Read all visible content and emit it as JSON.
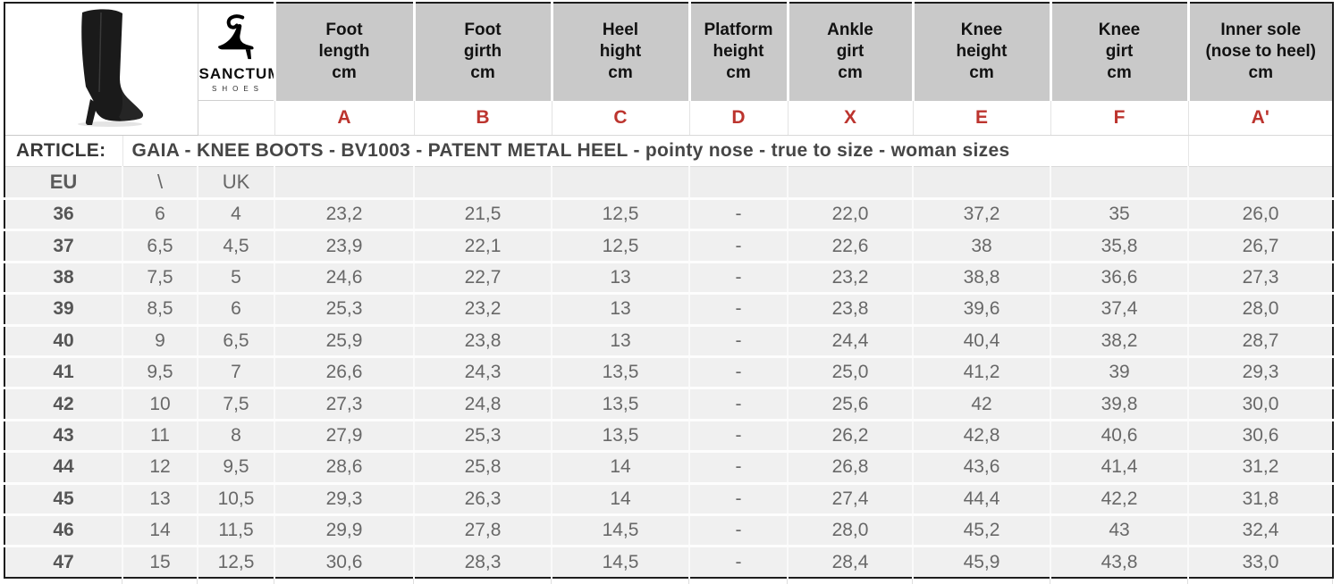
{
  "brand": {
    "name": "SANCTUM",
    "subtitle": "SHOES"
  },
  "article": {
    "label": "ARTICLE:",
    "value": "GAIA - KNEE BOOTS - BV1003 - PATENT METAL HEEL - pointy nose - true to size - woman sizes"
  },
  "columns": [
    {
      "id": "foot-length",
      "lines": [
        "Foot",
        "length",
        "cm"
      ],
      "letter": "A"
    },
    {
      "id": "foot-girth",
      "lines": [
        "Foot",
        "girth",
        "cm"
      ],
      "letter": "B"
    },
    {
      "id": "heel-hight",
      "lines": [
        "Heel",
        "hight",
        "cm"
      ],
      "letter": "C"
    },
    {
      "id": "platform-height",
      "lines": [
        "Platform",
        "height",
        "cm"
      ],
      "letter": "D"
    },
    {
      "id": "ankle-girt",
      "lines": [
        "Ankle",
        "girt",
        "cm"
      ],
      "letter": "X"
    },
    {
      "id": "knee-height",
      "lines": [
        "Knee",
        "height",
        "cm"
      ],
      "letter": "E"
    },
    {
      "id": "knee-girt",
      "lines": [
        "Knee",
        "girt",
        "cm"
      ],
      "letter": "F"
    },
    {
      "id": "inner-sole",
      "lines": [
        "Inner sole",
        "(nose to heel)",
        "cm"
      ],
      "letter": "A'"
    }
  ],
  "size_header": {
    "eu": "EU",
    "divider": "\\",
    "uk": "UK"
  },
  "rows": [
    {
      "eu": "36",
      "us": "6",
      "uk": "4",
      "values": [
        "23,2",
        "21,5",
        "12,5",
        "-",
        "22,0",
        "37,2",
        "35",
        "26,0"
      ]
    },
    {
      "eu": "37",
      "us": "6,5",
      "uk": "4,5",
      "values": [
        "23,9",
        "22,1",
        "12,5",
        "-",
        "22,6",
        "38",
        "35,8",
        "26,7"
      ]
    },
    {
      "eu": "38",
      "us": "7,5",
      "uk": "5",
      "values": [
        "24,6",
        "22,7",
        "13",
        "-",
        "23,2",
        "38,8",
        "36,6",
        "27,3"
      ]
    },
    {
      "eu": "39",
      "us": "8,5",
      "uk": "6",
      "values": [
        "25,3",
        "23,2",
        "13",
        "-",
        "23,8",
        "39,6",
        "37,4",
        "28,0"
      ]
    },
    {
      "eu": "40",
      "us": "9",
      "uk": "6,5",
      "values": [
        "25,9",
        "23,8",
        "13",
        "-",
        "24,4",
        "40,4",
        "38,2",
        "28,7"
      ]
    },
    {
      "eu": "41",
      "us": "9,5",
      "uk": "7",
      "values": [
        "26,6",
        "24,3",
        "13,5",
        "-",
        "25,0",
        "41,2",
        "39",
        "29,3"
      ]
    },
    {
      "eu": "42",
      "us": "10",
      "uk": "7,5",
      "values": [
        "27,3",
        "24,8",
        "13,5",
        "-",
        "25,6",
        "42",
        "39,8",
        "30,0"
      ]
    },
    {
      "eu": "43",
      "us": "11",
      "uk": "8",
      "values": [
        "27,9",
        "25,3",
        "13,5",
        "-",
        "26,2",
        "42,8",
        "40,6",
        "30,6"
      ]
    },
    {
      "eu": "44",
      "us": "12",
      "uk": "9,5",
      "values": [
        "28,6",
        "25,8",
        "14",
        "-",
        "26,8",
        "43,6",
        "41,4",
        "31,2"
      ]
    },
    {
      "eu": "45",
      "us": "13",
      "uk": "10,5",
      "values": [
        "29,3",
        "26,3",
        "14",
        "-",
        "27,4",
        "44,4",
        "42,2",
        "31,8"
      ]
    },
    {
      "eu": "46",
      "us": "14",
      "uk": "11,5",
      "values": [
        "29,9",
        "27,8",
        "14,5",
        "-",
        "28,0",
        "45,2",
        "43",
        "32,4"
      ]
    },
    {
      "eu": "47",
      "us": "15",
      "uk": "12,5",
      "values": [
        "30,6",
        "28,3",
        "14,5",
        "-",
        "28,4",
        "45,9",
        "43,8",
        "33,0"
      ]
    }
  ],
  "colors": {
    "header_bg": "#c9c9c9",
    "letter_red": "#bc342e",
    "table_border": "#1d1d1d",
    "cell_bg": "#f0f0f0",
    "data_text": "#686868"
  }
}
